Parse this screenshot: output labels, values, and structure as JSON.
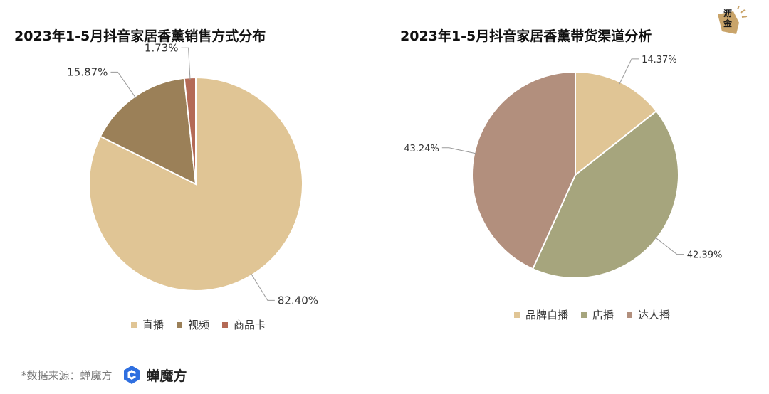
{
  "chart_data": [
    {
      "type": "pie",
      "title": "2023年1-5月抖音家居香薰销售方式分布",
      "categories": [
        "直播",
        "视频",
        "商品卡"
      ],
      "values": [
        82.4,
        15.87,
        1.73
      ],
      "value_labels": [
        "82.40%",
        "15.87%",
        "1.73%"
      ],
      "colors": [
        "#e0c595",
        "#9b8058",
        "#b46a56"
      ],
      "legend": "bottom"
    },
    {
      "type": "pie",
      "title": "2023年1-5月抖音家居香薰带货渠道分析",
      "categories": [
        "品牌自播",
        "店播",
        "达人播"
      ],
      "values": [
        14.37,
        42.39,
        43.24
      ],
      "value_labels": [
        "14.37%",
        "42.39%",
        "43.24%"
      ],
      "colors": [
        "#e0c595",
        "#a6a57d",
        "#b28f7d"
      ],
      "legend": "bottom"
    }
  ],
  "footer": {
    "source": "*数据来源：蝉魔方",
    "brand": "蝉魔方"
  },
  "corner_logo": {
    "line1": "沥",
    "line2": "金"
  }
}
